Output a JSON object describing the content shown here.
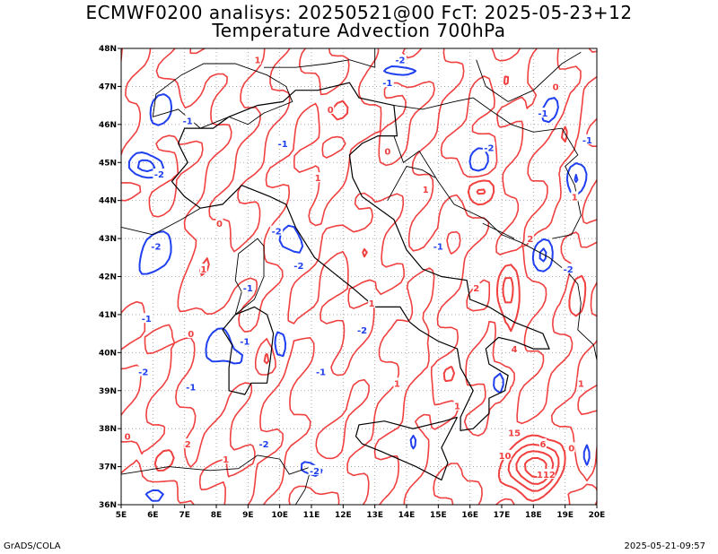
{
  "title_line1": "ECMWF0200 analisys: 20250521@00 FcT: 2025-05-23+12",
  "title_line2": "Temperature Advection 700hPa",
  "footer_left": "GrADS/COLA",
  "footer_right": "2025-05-21-09:57",
  "map": {
    "lon_labels": [
      "5E",
      "6E",
      "7E",
      "8E",
      "9E",
      "10E",
      "11E",
      "12E",
      "13E",
      "14E",
      "15E",
      "16E",
      "17E",
      "18E",
      "19E",
      "20E"
    ],
    "lat_labels": [
      "48N",
      "47N",
      "46N",
      "45N",
      "44N",
      "43N",
      "42N",
      "41N",
      "40N",
      "39N",
      "38N",
      "37N",
      "36N"
    ],
    "lon_range": [
      5,
      20
    ],
    "lat_range": [
      36,
      48
    ],
    "positive_color": "#f04040",
    "negative_color": "#2040f0",
    "coastline_color": "#000000",
    "contour_labels": [
      {
        "text": "-1",
        "lon": 7.1,
        "lat": 46.1,
        "sign": "neg"
      },
      {
        "text": "-2",
        "lon": 6.2,
        "lat": 44.7,
        "sign": "neg"
      },
      {
        "text": "-2",
        "lon": 6.1,
        "lat": 42.8,
        "sign": "neg"
      },
      {
        "text": "-1",
        "lon": 9.0,
        "lat": 41.7,
        "sign": "neg"
      },
      {
        "text": "-2",
        "lon": 10.6,
        "lat": 42.3,
        "sign": "neg"
      },
      {
        "text": "-1",
        "lon": 5.8,
        "lat": 40.9,
        "sign": "neg"
      },
      {
        "text": "-2",
        "lon": 5.7,
        "lat": 39.5,
        "sign": "neg"
      },
      {
        "text": "-1",
        "lon": 7.2,
        "lat": 39.1,
        "sign": "neg"
      },
      {
        "text": "-1",
        "lon": 8.9,
        "lat": 40.3,
        "sign": "neg"
      },
      {
        "text": "-2",
        "lon": 12.6,
        "lat": 40.6,
        "sign": "neg"
      },
      {
        "text": "-1",
        "lon": 11.3,
        "lat": 39.5,
        "sign": "neg"
      },
      {
        "text": "-2",
        "lon": 9.5,
        "lat": 37.6,
        "sign": "neg"
      },
      {
        "text": "-2",
        "lon": 11.1,
        "lat": 36.9,
        "sign": "neg"
      },
      {
        "text": "-1",
        "lon": 10.1,
        "lat": 45.5,
        "sign": "neg"
      },
      {
        "text": "-2",
        "lon": 9.9,
        "lat": 43.2,
        "sign": "neg"
      },
      {
        "text": "-1",
        "lon": 13.4,
        "lat": 47.1,
        "sign": "neg"
      },
      {
        "text": "-2",
        "lon": 13.8,
        "lat": 47.7,
        "sign": "neg"
      },
      {
        "text": "-1",
        "lon": 15.0,
        "lat": 42.8,
        "sign": "neg"
      },
      {
        "text": "-2",
        "lon": 16.6,
        "lat": 45.4,
        "sign": "neg"
      },
      {
        "text": "-1",
        "lon": 18.3,
        "lat": 46.3,
        "sign": "neg"
      },
      {
        "text": "-2",
        "lon": 19.1,
        "lat": 42.2,
        "sign": "neg"
      },
      {
        "text": "-1",
        "lon": 19.7,
        "lat": 45.6,
        "sign": "neg"
      },
      {
        "text": "1",
        "lon": 9.3,
        "lat": 47.7,
        "sign": "pos"
      },
      {
        "text": "0",
        "lon": 11.6,
        "lat": 46.4,
        "sign": "pos"
      },
      {
        "text": "0",
        "lon": 13.4,
        "lat": 45.3,
        "sign": "pos"
      },
      {
        "text": "1",
        "lon": 11.2,
        "lat": 44.6,
        "sign": "pos"
      },
      {
        "text": "0",
        "lon": 8.1,
        "lat": 43.4,
        "sign": "pos"
      },
      {
        "text": "1",
        "lon": 7.6,
        "lat": 42.2,
        "sign": "pos"
      },
      {
        "text": "0",
        "lon": 7.2,
        "lat": 40.5,
        "sign": "pos"
      },
      {
        "text": "1",
        "lon": 12.9,
        "lat": 41.3,
        "sign": "pos"
      },
      {
        "text": "1",
        "lon": 13.7,
        "lat": 39.2,
        "sign": "pos"
      },
      {
        "text": "2",
        "lon": 7.1,
        "lat": 37.6,
        "sign": "pos"
      },
      {
        "text": "1",
        "lon": 8.3,
        "lat": 37.2,
        "sign": "pos"
      },
      {
        "text": "0",
        "lon": 5.2,
        "lat": 37.8,
        "sign": "pos"
      },
      {
        "text": "1",
        "lon": 15.6,
        "lat": 38.6,
        "sign": "pos"
      },
      {
        "text": "2",
        "lon": 16.2,
        "lat": 41.7,
        "sign": "pos"
      },
      {
        "text": "4",
        "lon": 17.4,
        "lat": 40.1,
        "sign": "pos"
      },
      {
        "text": "2",
        "lon": 17.9,
        "lat": 43.0,
        "sign": "pos"
      },
      {
        "text": "1",
        "lon": 14.6,
        "lat": 44.3,
        "sign": "pos"
      },
      {
        "text": "1",
        "lon": 19.3,
        "lat": 44.1,
        "sign": "pos"
      },
      {
        "text": "0",
        "lon": 18.7,
        "lat": 47.0,
        "sign": "pos"
      },
      {
        "text": "15",
        "lon": 17.4,
        "lat": 37.9,
        "sign": "pos"
      },
      {
        "text": "6",
        "lon": 18.3,
        "lat": 37.6,
        "sign": "pos"
      },
      {
        "text": "10",
        "lon": 17.1,
        "lat": 37.3,
        "sign": "pos"
      },
      {
        "text": "112",
        "lon": 18.4,
        "lat": 36.8,
        "sign": "pos"
      },
      {
        "text": "0",
        "lon": 19.2,
        "lat": 37.5,
        "sign": "pos"
      },
      {
        "text": "1",
        "lon": 19.5,
        "lat": 39.2,
        "sign": "pos"
      }
    ]
  }
}
